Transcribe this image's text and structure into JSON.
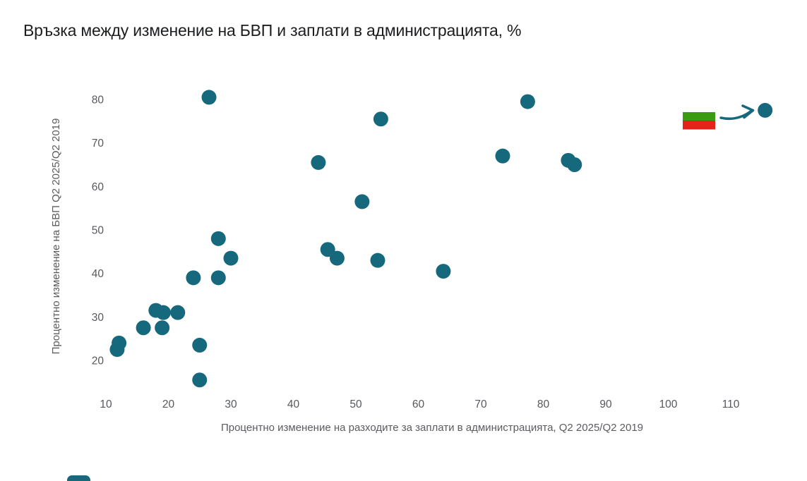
{
  "chart_data": {
    "type": "scatter",
    "title": "Връзка между изменение на БВП и заплати в администрацията, %",
    "xlabel": "Процентно изменение на разходите за заплати в администрацията, Q2 2025/Q2 2019",
    "ylabel": "Процентно изменение на БВП Q2 2025/Q2 2019",
    "xlim": [
      8,
      117
    ],
    "ylim": [
      13,
      84
    ],
    "x_ticks": [
      10,
      20,
      30,
      40,
      50,
      60,
      70,
      80,
      90,
      100,
      110
    ],
    "y_ticks": [
      20,
      30,
      40,
      50,
      60,
      70,
      80
    ],
    "grid": false,
    "axis_lines": false,
    "legend": "none",
    "marker": {
      "shape": "circle",
      "radius_px": 10.5,
      "color": "#16697C"
    },
    "points": [
      {
        "x": 11.8,
        "y": 22.5
      },
      {
        "x": 12.1,
        "y": 24
      },
      {
        "x": 16,
        "y": 27.5
      },
      {
        "x": 18,
        "y": 31.5
      },
      {
        "x": 19,
        "y": 27.5
      },
      {
        "x": 19.2,
        "y": 31
      },
      {
        "x": 21.5,
        "y": 31
      },
      {
        "x": 24,
        "y": 39
      },
      {
        "x": 25,
        "y": 15.5
      },
      {
        "x": 25,
        "y": 23.5
      },
      {
        "x": 26.5,
        "y": 80.5
      },
      {
        "x": 28,
        "y": 39
      },
      {
        "x": 28,
        "y": 48
      },
      {
        "x": 30,
        "y": 43.5
      },
      {
        "x": 44,
        "y": 65.5
      },
      {
        "x": 45.5,
        "y": 45.5
      },
      {
        "x": 47,
        "y": 43.5
      },
      {
        "x": 51,
        "y": 56.5
      },
      {
        "x": 53.5,
        "y": 43
      },
      {
        "x": 54,
        "y": 75.5
      },
      {
        "x": 64,
        "y": 40.5
      },
      {
        "x": 73.5,
        "y": 67
      },
      {
        "x": 77.5,
        "y": 79.5
      },
      {
        "x": 84,
        "y": 66
      },
      {
        "x": 85,
        "y": 65
      },
      {
        "x": 115.5,
        "y": 77.5
      }
    ],
    "annotation": {
      "type": "flag-with-arrow",
      "icon": "bulgaria-flag-icon",
      "flag_green": "#3A9B10",
      "flag_red": "#E62319",
      "arrow_color": "#16697C",
      "target_point": {
        "x": 115.5,
        "y": 77.5
      }
    }
  },
  "colors": {
    "title_text": "#1c1d1f",
    "tick_text": "#56585c",
    "axis_title_text": "#5a5c60",
    "dot": "#16697C",
    "background": "#ffffff"
  },
  "decor": {
    "bottom_left_fragment_color": "#16697C"
  }
}
